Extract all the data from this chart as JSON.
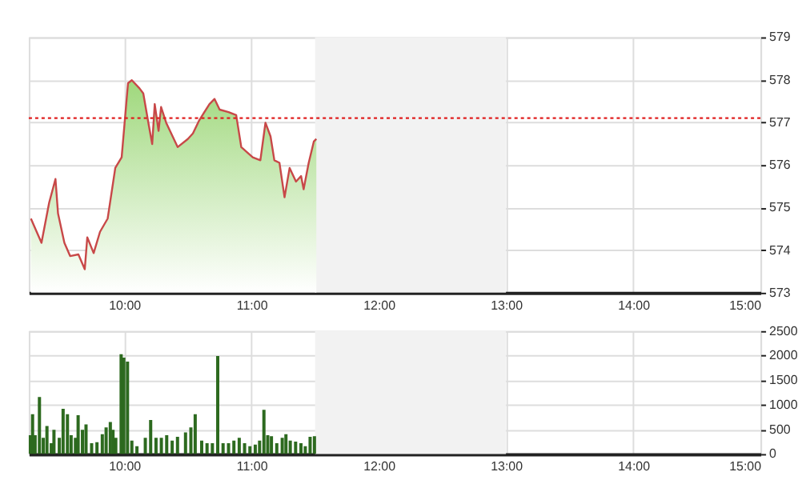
{
  "chart_data": [
    {
      "type": "area",
      "xlim": [
        9.25,
        15
      ],
      "ylim": [
        573,
        579
      ],
      "yticks": [
        573,
        574,
        575,
        576,
        577,
        578,
        579
      ],
      "xticks": [
        {
          "value": 10,
          "label": "10:00"
        },
        {
          "value": 11,
          "label": "11:00"
        },
        {
          "value": 12,
          "label": "12:00"
        },
        {
          "value": 13,
          "label": "13:00"
        },
        {
          "value": 14,
          "label": "14:00"
        },
        {
          "value": 15,
          "label": "15:00"
        }
      ],
      "grid": true,
      "line_style": "solid",
      "ref_lines": [
        {
          "axis": "y",
          "value": 577.1,
          "color": "#e02020",
          "line_style": "dotted"
        }
      ],
      "bands": [
        {
          "axis": "x",
          "from": 11.5,
          "to": 13,
          "color": "#f2f2f2"
        }
      ],
      "series": [
        {
          "color": "#c84848",
          "x": [
            9.267,
            9.35,
            9.41,
            9.46,
            9.48,
            9.53,
            9.575,
            9.64,
            9.69,
            9.71,
            9.76,
            9.81,
            9.87,
            9.93,
            9.98,
            10.03,
            10.06,
            10.12,
            10.15,
            10.19,
            10.22,
            10.24,
            10.27,
            10.29,
            10.33,
            10.42,
            10.5,
            10.54,
            10.59,
            10.67,
            10.71,
            10.75,
            10.82,
            10.88,
            10.92,
            11.01,
            11.07,
            11.11,
            11.15,
            11.18,
            11.22,
            11.26,
            11.3,
            11.35,
            11.39,
            11.41,
            11.45,
            11.49,
            11.51
          ],
          "values": [
            574.74,
            574.17,
            575.11,
            575.67,
            574.86,
            574.17,
            573.86,
            573.9,
            573.55,
            574.3,
            573.93,
            574.43,
            574.74,
            575.93,
            576.18,
            577.92,
            577.99,
            577.8,
            577.68,
            576.99,
            576.49,
            577.43,
            576.8,
            577.36,
            576.99,
            576.42,
            576.61,
            576.74,
            577.05,
            577.43,
            577.55,
            577.3,
            577.24,
            577.17,
            576.42,
            576.18,
            576.11,
            576.99,
            576.67,
            576.11,
            576.05,
            575.24,
            575.93,
            575.61,
            575.74,
            575.43,
            576.05,
            576.55,
            576.61
          ]
        }
      ]
    },
    {
      "type": "bar",
      "xlim": [
        9.25,
        15
      ],
      "ylim": [
        0,
        2500
      ],
      "yticks": [
        0,
        500,
        1000,
        1500,
        2000,
        2500
      ],
      "xticks": [
        {
          "value": 10,
          "label": "10:00"
        },
        {
          "value": 11,
          "label": "11:00"
        },
        {
          "value": 12,
          "label": "12:00"
        },
        {
          "value": 13,
          "label": "13:00"
        },
        {
          "value": 14,
          "label": "14:00"
        },
        {
          "value": 15,
          "label": "15:00"
        }
      ],
      "grid": true,
      "bands": [
        {
          "axis": "x",
          "from": 11.5,
          "to": 13,
          "color": "#f2f2f2"
        }
      ],
      "series": [
        {
          "color": "#2d6a1f",
          "x": [
            9.258,
            9.28,
            9.3,
            9.334,
            9.364,
            9.393,
            9.427,
            9.448,
            9.49,
            9.52,
            9.554,
            9.583,
            9.617,
            9.638,
            9.672,
            9.7,
            9.744,
            9.786,
            9.828,
            9.858,
            9.891,
            9.912,
            9.934,
            9.976,
            9.997,
            10.026,
            10.06,
            10.1,
            10.166,
            10.208,
            10.25,
            10.292,
            10.334,
            10.377,
            10.419,
            10.482,
            10.524,
            10.558,
            10.609,
            10.651,
            10.693,
            10.735,
            10.777,
            10.82,
            10.862,
            10.904,
            10.946,
            10.988,
            11.03,
            11.064,
            11.098,
            11.128,
            11.157,
            11.199,
            11.242,
            11.271,
            11.305,
            11.347,
            11.389,
            11.423,
            11.461,
            11.495
          ],
          "values": [
            380,
            810,
            380,
            1160,
            330,
            570,
            220,
            490,
            330,
            920,
            810,
            380,
            330,
            790,
            490,
            600,
            220,
            240,
            400,
            540,
            650,
            490,
            330,
            2030,
            1960,
            1880,
            270,
            160,
            330,
            690,
            330,
            330,
            380,
            270,
            350,
            440,
            540,
            810,
            270,
            220,
            220,
            1990,
            220,
            220,
            270,
            330,
            220,
            160,
            190,
            270,
            900,
            380,
            360,
            220,
            330,
            400,
            270,
            250,
            220,
            160,
            350,
            360
          ]
        }
      ]
    }
  ]
}
